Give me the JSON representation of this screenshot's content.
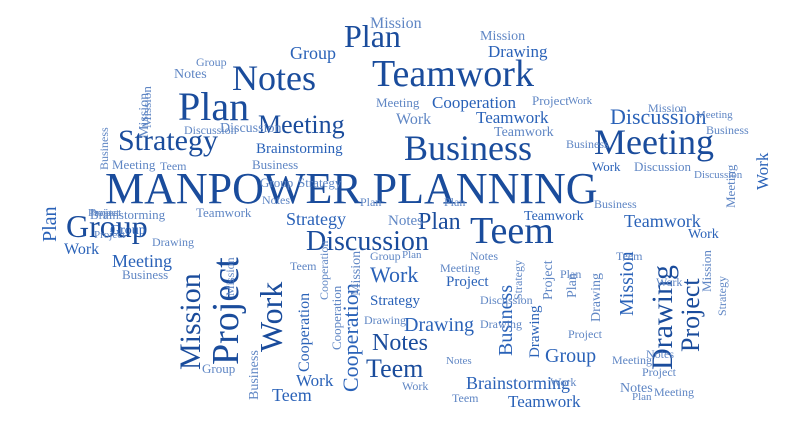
{
  "title": "MANPOWER PLANNING",
  "colors": {
    "dark": "#1a4c9c",
    "mid": "#2a62b8",
    "light": "#5f86c4",
    "pale": "#93acd6"
  },
  "words": [
    "Teamwork",
    "Notes",
    "Plan",
    "Plan",
    "Group",
    "Mission",
    "Mission",
    "Drawing",
    "Strategy",
    "Meeting",
    "Business",
    "Meeting",
    "Discussion",
    "Brainstorming",
    "Cooperation",
    "Project",
    "Teamwork",
    "Teamwork",
    "Discussion",
    "Teem",
    "Work",
    "Strategy",
    "Discussion",
    "Plan",
    "Notes",
    "Group",
    "Project",
    "Mission",
    "Work",
    "Brainstorming",
    "Teamwork",
    "Work",
    "Project",
    "Drawing",
    "Project",
    "Meeting",
    "Group",
    "Strategy",
    "Notes",
    "Teem",
    "Cooperation",
    "Work",
    "Brainstorming",
    "Teem",
    "Teamwork",
    "Drawing",
    "Business",
    "Mission",
    "Work",
    "Notes",
    "Group",
    "Work",
    "Meeting",
    "Business",
    "Plan",
    "Mission",
    "Group",
    "Work",
    "Teem",
    "Business",
    "Cooperation",
    "Business",
    "Project",
    "Drawing",
    "Notes",
    "Mission",
    "Business",
    "Project",
    "Discussion",
    "Meeting",
    "Plan",
    "Project",
    "Notes",
    "Group",
    "Teem",
    "Drawing",
    "Strategy",
    "Mission",
    "Meeting",
    "Group",
    "Business",
    "Teamwork",
    "Plan",
    "Meeting",
    "Discussion",
    "Mission",
    "Work",
    "Business",
    "Project",
    "Plan",
    "Drawing",
    "Teamwork",
    "Strategy",
    "Meeting",
    "Notes",
    "Plan",
    "Project",
    "Work",
    "Cooperation",
    "Work",
    "Mission",
    "Business",
    "Teem",
    "Discussion",
    "Group",
    "Notes",
    "Work",
    "Drawing",
    "Project",
    "Plan",
    "Strategy",
    "Meeting",
    "Teem",
    "Drawing",
    "Plan",
    "Discussion",
    "Meeting",
    "Work",
    "Mission",
    "Notes",
    "Cooperation"
  ]
}
